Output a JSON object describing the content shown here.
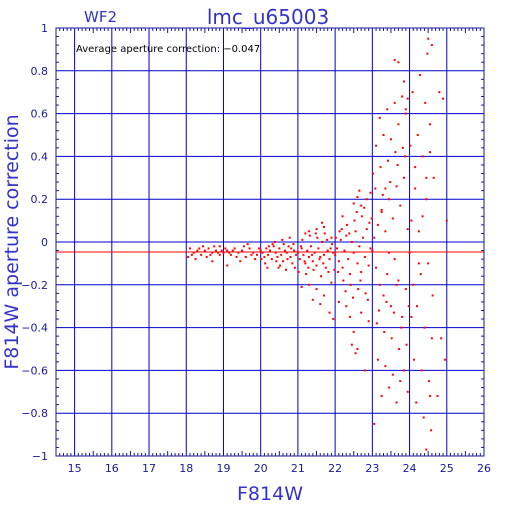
{
  "chart_data": {
    "type": "scatter",
    "title": "lmc_u65003",
    "subtitle": "WF2",
    "xlabel": "F814W",
    "ylabel": "F814W aperture correction",
    "annotation": "Average aperture correction: −0.047",
    "xlim": [
      14.5,
      26
    ],
    "ylim": [
      -1,
      1
    ],
    "x_ticks": [
      15,
      16,
      17,
      18,
      19,
      20,
      21,
      22,
      23,
      24,
      25,
      26
    ],
    "x_tick_labels": [
      "15",
      "16",
      "17",
      "18",
      "19",
      "20",
      "21",
      "22",
      "23",
      "24",
      "25",
      "26"
    ],
    "y_ticks": [
      -1,
      -0.8,
      -0.6,
      -0.4,
      -0.2,
      0,
      0.2,
      0.4,
      0.6,
      0.8,
      1
    ],
    "y_tick_labels": [
      "−1",
      "−0.8",
      "−0.6",
      "−0.4",
      "−0.2",
      "0",
      "0.2",
      "0.4",
      "0.6",
      "0.8",
      "1"
    ],
    "grid": true,
    "reference_line": {
      "y": -0.047,
      "color": "#ff0000"
    },
    "colors": {
      "frame": "#1a1a99",
      "grid": "#0000cc",
      "points": "#ff0000",
      "text": "#3333cc"
    },
    "series": [
      {
        "points": [
          [
            18.1,
            -0.03
          ],
          [
            18.2,
            -0.05
          ],
          [
            18.3,
            -0.04
          ],
          [
            18.4,
            -0.06
          ],
          [
            18.5,
            -0.04
          ],
          [
            18.6,
            -0.03
          ],
          [
            18.7,
            -0.05
          ],
          [
            18.8,
            -0.04
          ],
          [
            18.9,
            -0.06
          ],
          [
            19.0,
            -0.05
          ],
          [
            18.15,
            -0.06
          ],
          [
            18.35,
            -0.03
          ],
          [
            18.55,
            -0.07
          ],
          [
            18.75,
            -0.02
          ],
          [
            18.95,
            -0.04
          ],
          [
            18.25,
            -0.08
          ],
          [
            18.45,
            -0.02
          ],
          [
            18.65,
            -0.06
          ],
          [
            18.85,
            -0.05
          ],
          [
            18.05,
            -0.07
          ],
          [
            19.1,
            -0.04
          ],
          [
            19.2,
            -0.06
          ],
          [
            19.3,
            -0.03
          ],
          [
            19.4,
            -0.05
          ],
          [
            19.5,
            -0.04
          ],
          [
            19.6,
            -0.07
          ],
          [
            19.7,
            -0.03
          ],
          [
            19.8,
            -0.05
          ],
          [
            19.9,
            -0.06
          ],
          [
            20.0,
            -0.04
          ],
          [
            19.15,
            -0.05
          ],
          [
            19.35,
            -0.07
          ],
          [
            19.55,
            -0.02
          ],
          [
            19.75,
            -0.06
          ],
          [
            19.95,
            -0.03
          ],
          [
            19.45,
            -0.09
          ],
          [
            19.65,
            -0.01
          ],
          [
            19.25,
            -0.04
          ],
          [
            19.85,
            -0.08
          ],
          [
            19.05,
            -0.03
          ],
          [
            18.7,
            -0.09
          ],
          [
            19.1,
            -0.11
          ],
          [
            18.9,
            -0.02
          ],
          [
            20.05,
            -0.05
          ],
          [
            20.1,
            -0.07
          ],
          [
            20.15,
            -0.03
          ],
          [
            20.2,
            -0.06
          ],
          [
            20.25,
            -0.04
          ],
          [
            20.3,
            -0.08
          ],
          [
            20.35,
            -0.02
          ],
          [
            20.4,
            -0.05
          ],
          [
            20.45,
            -0.07
          ],
          [
            20.5,
            -0.03
          ],
          [
            20.55,
            -0.06
          ],
          [
            20.6,
            -0.09
          ],
          [
            20.65,
            -0.04
          ],
          [
            20.7,
            -0.05
          ],
          [
            20.75,
            -0.02
          ],
          [
            20.8,
            -0.07
          ],
          [
            20.85,
            -0.1
          ],
          [
            20.9,
            -0.04
          ],
          [
            20.95,
            -0.06
          ],
          [
            20.12,
            -0.1
          ],
          [
            20.32,
            -0.01
          ],
          [
            20.52,
            -0.11
          ],
          [
            20.72,
            -0.08
          ],
          [
            20.92,
            -0.12
          ],
          [
            20.22,
            -0.02
          ],
          [
            20.42,
            -0.09
          ],
          [
            20.62,
            -0.01
          ],
          [
            20.82,
            -0.03
          ],
          [
            20.02,
            -0.08
          ],
          [
            20.48,
            -0.12
          ],
          [
            20.68,
            -0.13
          ],
          [
            20.38,
            0.0
          ],
          [
            20.58,
            0.01
          ],
          [
            20.88,
            -0.01
          ],
          [
            20.78,
            0.02
          ],
          [
            20.18,
            -0.12
          ],
          [
            21.0,
            -0.05
          ],
          [
            21.05,
            -0.08
          ],
          [
            21.1,
            -0.03
          ],
          [
            21.15,
            -0.06
          ],
          [
            21.2,
            -0.1
          ],
          [
            21.25,
            -0.04
          ],
          [
            21.3,
            -0.07
          ],
          [
            21.35,
            -0.02
          ],
          [
            21.4,
            -0.09
          ],
          [
            21.45,
            -0.05
          ],
          [
            21.5,
            -0.11
          ],
          [
            21.55,
            -0.03
          ],
          [
            21.6,
            -0.07
          ],
          [
            21.65,
            0.0
          ],
          [
            21.7,
            -0.06
          ],
          [
            21.75,
            -0.12
          ],
          [
            21.8,
            -0.04
          ],
          [
            21.85,
            -0.08
          ],
          [
            21.9,
            0.02
          ],
          [
            21.95,
            -0.05
          ],
          [
            21.02,
            -0.14
          ],
          [
            21.12,
            0.01
          ],
          [
            21.22,
            -0.15
          ],
          [
            21.32,
            0.03
          ],
          [
            21.42,
            -0.13
          ],
          [
            21.52,
            0.02
          ],
          [
            21.62,
            -0.16
          ],
          [
            21.72,
            0.04
          ],
          [
            21.82,
            -0.14
          ],
          [
            21.92,
            -0.01
          ],
          [
            21.08,
            -0.02
          ],
          [
            21.18,
            -0.09
          ],
          [
            21.28,
            -0.12
          ],
          [
            21.38,
            -0.06
          ],
          [
            21.48,
            0.04
          ],
          [
            21.58,
            -0.08
          ],
          [
            21.68,
            -0.1
          ],
          [
            21.78,
            0.01
          ],
          [
            21.88,
            -0.03
          ],
          [
            21.98,
            -0.13
          ],
          [
            21.3,
            -0.2
          ],
          [
            21.5,
            -0.22
          ],
          [
            21.7,
            -0.25
          ],
          [
            21.9,
            -0.19
          ],
          [
            21.6,
            -0.29
          ],
          [
            21.85,
            -0.33
          ],
          [
            21.4,
            -0.27
          ],
          [
            21.95,
            -0.36
          ],
          [
            21.1,
            -0.21
          ],
          [
            21.3,
            0.05
          ],
          [
            21.5,
            0.06
          ],
          [
            21.7,
            0.07
          ],
          [
            21.2,
            0.04
          ],
          [
            21.65,
            0.09
          ],
          [
            22.0,
            -0.06
          ],
          [
            22.05,
            -0.03
          ],
          [
            22.1,
            -0.09
          ],
          [
            22.15,
            0.01
          ],
          [
            22.2,
            -0.12
          ],
          [
            22.25,
            -0.04
          ],
          [
            22.3,
            0.03
          ],
          [
            22.35,
            -0.08
          ],
          [
            22.4,
            -0.15
          ],
          [
            22.45,
            0.0
          ],
          [
            22.5,
            -0.05
          ],
          [
            22.55,
            0.05
          ],
          [
            22.6,
            -0.1
          ],
          [
            22.65,
            -0.02
          ],
          [
            22.7,
            -0.14
          ],
          [
            22.75,
            0.02
          ],
          [
            22.8,
            -0.07
          ],
          [
            22.85,
            0.06
          ],
          [
            22.9,
            -0.11
          ],
          [
            22.95,
            -0.03
          ],
          [
            22.02,
            0.02
          ],
          [
            22.12,
            0.05
          ],
          [
            22.22,
            -0.18
          ],
          [
            22.32,
            0.08
          ],
          [
            22.42,
            -0.2
          ],
          [
            22.52,
            0.1
          ],
          [
            22.62,
            -0.22
          ],
          [
            22.72,
            0.12
          ],
          [
            22.82,
            -0.24
          ],
          [
            22.92,
            0.09
          ],
          [
            22.08,
            -0.14
          ],
          [
            22.18,
            0.06
          ],
          [
            22.28,
            -0.23
          ],
          [
            22.38,
            0.04
          ],
          [
            22.48,
            -0.26
          ],
          [
            22.58,
            0.14
          ],
          [
            22.68,
            -0.18
          ],
          [
            22.78,
            0.16
          ],
          [
            22.88,
            -0.27
          ],
          [
            22.98,
            0.11
          ],
          [
            22.4,
            -0.35
          ],
          [
            22.5,
            -0.42
          ],
          [
            22.45,
            -0.48
          ],
          [
            22.55,
            -0.52
          ],
          [
            22.6,
            -0.5
          ],
          [
            22.3,
            -0.3
          ],
          [
            22.7,
            -0.33
          ],
          [
            22.9,
            -0.37
          ],
          [
            22.1,
            -0.28
          ],
          [
            22.8,
            -0.6
          ],
          [
            22.5,
            0.18
          ],
          [
            22.6,
            0.21
          ],
          [
            22.7,
            0.17
          ],
          [
            22.85,
            0.2
          ],
          [
            22.95,
            0.23
          ],
          [
            22.2,
            0.12
          ],
          [
            22.65,
            0.24
          ],
          [
            23.0,
            -0.04
          ],
          [
            23.05,
            0.02
          ],
          [
            23.1,
            -0.12
          ],
          [
            23.15,
            0.08
          ],
          [
            23.2,
            -0.2
          ],
          [
            23.25,
            0.14
          ],
          [
            23.3,
            -0.25
          ],
          [
            23.35,
            0.05
          ],
          [
            23.4,
            -0.15
          ],
          [
            23.45,
            0.2
          ],
          [
            23.5,
            -0.3
          ],
          [
            23.55,
            0.11
          ],
          [
            23.6,
            -0.08
          ],
          [
            23.65,
            0.26
          ],
          [
            23.7,
            -0.18
          ],
          [
            23.75,
            0.17
          ],
          [
            23.8,
            -0.35
          ],
          [
            23.85,
            0.3
          ],
          [
            23.9,
            -0.22
          ],
          [
            23.95,
            0.06
          ],
          [
            23.02,
            0.32
          ],
          [
            23.12,
            -0.38
          ],
          [
            23.22,
            0.35
          ],
          [
            23.32,
            -0.42
          ],
          [
            23.42,
            0.38
          ],
          [
            23.52,
            -0.45
          ],
          [
            23.62,
            0.42
          ],
          [
            23.72,
            -0.5
          ],
          [
            23.82,
            0.44
          ],
          [
            23.92,
            -0.48
          ],
          [
            23.08,
            0.25
          ],
          [
            23.18,
            -0.32
          ],
          [
            23.28,
            0.22
          ],
          [
            23.38,
            -0.28
          ],
          [
            23.48,
            0.28
          ],
          [
            23.58,
            -0.33
          ],
          [
            23.68,
            0.36
          ],
          [
            23.78,
            -0.4
          ],
          [
            23.88,
            0.4
          ],
          [
            23.98,
            -0.3
          ],
          [
            23.1,
            0.45
          ],
          [
            23.3,
            0.5
          ],
          [
            23.5,
            0.48
          ],
          [
            23.7,
            0.55
          ],
          [
            23.9,
            0.6
          ],
          [
            23.4,
            0.62
          ],
          [
            23.6,
            0.65
          ],
          [
            23.2,
            0.58
          ],
          [
            23.8,
            0.68
          ],
          [
            23.85,
            0.75
          ],
          [
            23.15,
            -0.55
          ],
          [
            23.35,
            -0.58
          ],
          [
            23.55,
            -0.62
          ],
          [
            23.75,
            -0.65
          ],
          [
            23.95,
            -0.7
          ],
          [
            23.25,
            -0.72
          ],
          [
            23.45,
            -0.68
          ],
          [
            23.65,
            -0.75
          ],
          [
            23.85,
            -0.6
          ],
          [
            23.05,
            -0.85
          ],
          [
            23.6,
            0.85
          ],
          [
            23.7,
            0.84
          ],
          [
            23.9,
            0.62
          ],
          [
            23.95,
            0.67
          ],
          [
            23.25,
            0.15
          ],
          [
            23.45,
            -0.05
          ],
          [
            23.65,
            -0.2
          ],
          [
            23.35,
            0.25
          ],
          [
            24.0,
            -0.05
          ],
          [
            24.05,
            0.1
          ],
          [
            24.1,
            -0.2
          ],
          [
            24.15,
            0.25
          ],
          [
            24.2,
            -0.3
          ],
          [
            24.25,
            0.05
          ],
          [
            24.3,
            -0.15
          ],
          [
            24.35,
            0.4
          ],
          [
            24.4,
            -0.4
          ],
          [
            24.45,
            0.2
          ],
          [
            24.5,
            -0.1
          ],
          [
            24.55,
            0.55
          ],
          [
            24.6,
            -0.45
          ],
          [
            24.65,
            0.3
          ],
          [
            24.02,
            0.45
          ],
          [
            24.12,
            -0.55
          ],
          [
            24.22,
            0.5
          ],
          [
            24.32,
            -0.6
          ],
          [
            24.42,
            0.65
          ],
          [
            24.52,
            -0.65
          ],
          [
            24.08,
            0.7
          ],
          [
            24.18,
            -0.75
          ],
          [
            24.28,
            0.78
          ],
          [
            24.38,
            -0.82
          ],
          [
            24.48,
            0.88
          ],
          [
            24.58,
            -0.88
          ],
          [
            24.5,
            0.95
          ],
          [
            24.6,
            0.92
          ],
          [
            24.45,
            -0.97
          ],
          [
            24.55,
            -0.72
          ],
          [
            24.25,
            -0.1
          ],
          [
            24.35,
            0.12
          ],
          [
            24.45,
            0.3
          ],
          [
            24.55,
            0.42
          ],
          [
            24.62,
            -0.25
          ],
          [
            24.15,
            0.35
          ],
          [
            24.05,
            -0.35
          ],
          [
            24.8,
            0.7
          ],
          [
            24.9,
            0.67
          ],
          [
            24.85,
            -0.45
          ],
          [
            24.95,
            -0.55
          ],
          [
            24.75,
            -0.72
          ],
          [
            25.0,
            0.1
          ]
        ]
      }
    ]
  }
}
